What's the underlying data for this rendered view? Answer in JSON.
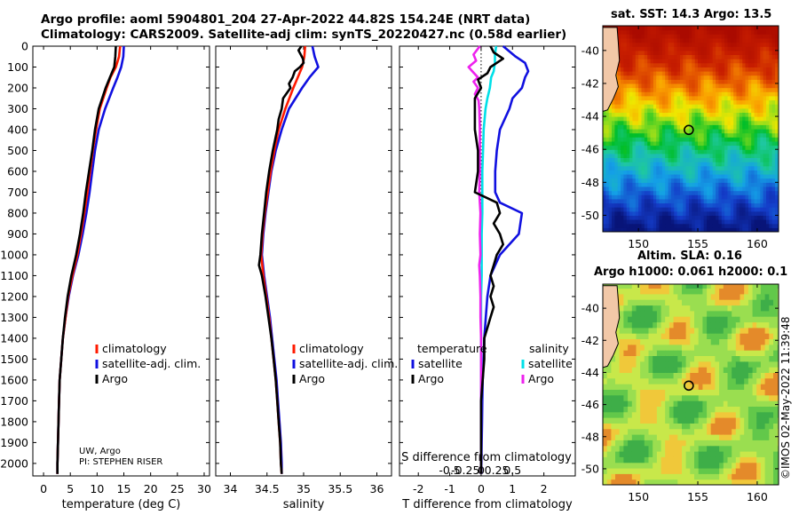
{
  "header": {
    "line1": "Argo profile: aoml 5904801_204 27-Apr-2022 44.82S 154.24E (NRT data)",
    "line2": "Climatology: CARS2009. Satellite-adj clim: synTS_20220427.nc (0.58d earlier)"
  },
  "credits": {
    "line1": "UW, Argo",
    "line2": "PI: STEPHEN RISER"
  },
  "imos_stamp": "©IMOS 02-May-2022 11:39:48",
  "colors": {
    "climatology": "#ff1a00",
    "satellite": "#1010e0",
    "argo": "#000000",
    "sal_sat": "#00e0e8",
    "sal_argo": "#ee22ee"
  },
  "right_panels": {
    "sst_title": "sat. SST: 14.3 Argo: 13.5",
    "sla_title1": "Altim. SLA: 0.16",
    "sla_title2": "Argo h1000: 0.061 h2000: 0.1",
    "float_marker": {
      "lon": 154.24,
      "lat": -44.82
    }
  },
  "chart_data": [
    {
      "type": "line",
      "xlabel": "temperature (deg C)",
      "xlim": [
        -2,
        31
      ],
      "xticks": [
        0,
        5,
        10,
        15,
        20,
        25,
        30
      ],
      "ylim": [
        2060,
        0
      ],
      "yticks": [
        0,
        100,
        200,
        300,
        400,
        500,
        600,
        700,
        800,
        900,
        1000,
        1100,
        1200,
        1300,
        1400,
        1500,
        1600,
        1700,
        1800,
        1900,
        2000
      ],
      "legend": [
        "climatology",
        "satellite-adj. clim.",
        "Argo"
      ],
      "series": [
        {
          "name": "climatology",
          "y": [
            0,
            50,
            100,
            150,
            200,
            300,
            400,
            500,
            600,
            700,
            800,
            900,
            1000,
            1100,
            1200,
            1300,
            1400,
            1500,
            1600,
            1700,
            1800,
            1900,
            2000,
            2050
          ],
          "x": [
            14.3,
            14.1,
            13.5,
            12.5,
            11.8,
            10.5,
            9.8,
            9.2,
            8.7,
            8.2,
            7.6,
            7,
            6.3,
            5.4,
            4.6,
            4.1,
            3.6,
            3.3,
            3,
            2.9,
            2.8,
            2.7,
            2.6,
            2.6
          ]
        },
        {
          "name": "satellite-adj. clim.",
          "y": [
            0,
            50,
            100,
            150,
            200,
            300,
            400,
            500,
            600,
            700,
            800,
            900,
            1000,
            1100,
            1200,
            1300,
            1400,
            1500,
            1600,
            1700,
            1800,
            1900,
            2000,
            2050
          ],
          "x": [
            15,
            14.9,
            14.5,
            13.8,
            13,
            11.5,
            10.3,
            9.6,
            9.1,
            8.6,
            8,
            7.3,
            6.5,
            5.5,
            4.7,
            4.1,
            3.6,
            3.3,
            3,
            2.9,
            2.8,
            2.7,
            2.6,
            2.6
          ]
        },
        {
          "name": "Argo",
          "y": [
            0,
            50,
            100,
            150,
            200,
            300,
            400,
            500,
            600,
            700,
            800,
            900,
            1000,
            1100,
            1200,
            1300,
            1400,
            1500,
            1600,
            1700,
            1800,
            1900,
            2000,
            2050
          ],
          "x": [
            13.5,
            13.4,
            13.2,
            12.4,
            11.6,
            10.3,
            9.6,
            9.1,
            8.5,
            7.9,
            7.4,
            6.8,
            6.1,
            5.2,
            4.5,
            4,
            3.6,
            3.3,
            3,
            2.9,
            2.8,
            2.7,
            2.6,
            2.6
          ]
        }
      ]
    },
    {
      "type": "line",
      "xlabel": "salinity",
      "xlim": [
        33.8,
        36.2
      ],
      "xticks": [
        34,
        34.5,
        35,
        35.5,
        36
      ],
      "ylim": [
        2060,
        0
      ],
      "legend": [
        "climatology",
        "satellite-adj. clim.",
        "Argo"
      ],
      "series": [
        {
          "name": "climatology",
          "y": [
            0,
            50,
            100,
            150,
            200,
            300,
            400,
            500,
            600,
            700,
            800,
            900,
            1000,
            1100,
            1200,
            1300,
            1400,
            1500,
            1600,
            1700,
            1800,
            1900,
            2000,
            2050
          ],
          "x": [
            35.02,
            35.01,
            34.98,
            34.92,
            34.86,
            34.75,
            34.66,
            34.6,
            34.55,
            34.51,
            34.47,
            34.44,
            34.42,
            34.45,
            34.49,
            34.53,
            34.56,
            34.59,
            34.62,
            34.64,
            34.66,
            34.68,
            34.69,
            34.7
          ]
        },
        {
          "name": "satellite-adj. clim.",
          "y": [
            0,
            50,
            100,
            150,
            200,
            300,
            400,
            500,
            600,
            700,
            800,
            900,
            1000,
            1100,
            1200,
            1300,
            1400,
            1500,
            1600,
            1700,
            1800,
            1900,
            2000,
            2050
          ],
          "x": [
            35.12,
            35.15,
            35.2,
            35.08,
            34.98,
            34.8,
            34.7,
            34.62,
            34.56,
            34.52,
            34.48,
            34.45,
            34.43,
            34.46,
            34.5,
            34.54,
            34.57,
            34.6,
            34.63,
            34.65,
            34.67,
            34.69,
            34.7,
            34.7
          ]
        },
        {
          "name": "Argo",
          "y": [
            0,
            20,
            40,
            60,
            80,
            100,
            120,
            150,
            180,
            200,
            250,
            300,
            350,
            400,
            500,
            600,
            700,
            800,
            900,
            1000,
            1050,
            1100,
            1200,
            1300,
            1400,
            1500,
            1600,
            1700,
            1800,
            1900,
            2000,
            2050
          ],
          "x": [
            34.97,
            34.93,
            34.96,
            34.99,
            35.0,
            34.95,
            34.88,
            34.85,
            34.8,
            34.82,
            34.72,
            34.7,
            34.66,
            34.64,
            34.58,
            34.53,
            34.49,
            34.46,
            34.43,
            34.41,
            34.39,
            34.43,
            34.48,
            34.52,
            34.56,
            34.59,
            34.62,
            34.64,
            34.66,
            34.68,
            34.69,
            34.7
          ]
        }
      ]
    },
    {
      "type": "line",
      "xlabel": "T difference from climatology",
      "xlabel2": "S difference from climatology",
      "xlim": [
        -2.6,
        3
      ],
      "xticks": [
        -2,
        -1,
        0,
        1,
        2
      ],
      "xticks2": [
        -0.5,
        -0.25,
        0,
        0.25,
        0.5
      ],
      "ylim": [
        2060,
        0
      ],
      "legend_left_title": "temperature",
      "legend_right_title": "salinity",
      "legend_left": [
        "satellite",
        "Argo"
      ],
      "legend_right": [
        "satellite",
        "Argo"
      ],
      "series": [
        {
          "name": "satellite",
          "group": "temperature",
          "y": [
            0,
            50,
            80,
            120,
            150,
            200,
            250,
            300,
            400,
            500,
            600,
            700,
            750,
            800,
            900,
            1000,
            1100,
            1200,
            1300,
            1400,
            1500,
            1600,
            1700,
            1800,
            1900,
            2000,
            2050
          ],
          "x": [
            0.7,
            1.1,
            1.4,
            1.5,
            1.4,
            1.3,
            1.0,
            0.9,
            0.6,
            0.5,
            0.45,
            0.45,
            0.6,
            1.3,
            1.2,
            0.6,
            0.3,
            0.2,
            0.15,
            0.1,
            0.08,
            0.05,
            0.04,
            0.03,
            0.02,
            0.01,
            0.0
          ]
        },
        {
          "name": "Argo",
          "group": "temperature",
          "y": [
            0,
            30,
            60,
            80,
            100,
            130,
            160,
            200,
            250,
            300,
            400,
            500,
            600,
            700,
            750,
            800,
            850,
            900,
            950,
            1000,
            1050,
            1100,
            1150,
            1200,
            1250,
            1300,
            1350,
            1400,
            1500,
            1600,
            1700,
            1800,
            1900,
            2000,
            2050
          ],
          "x": [
            0.3,
            0.4,
            0.7,
            0.5,
            0.3,
            0.2,
            -0.1,
            0.0,
            -0.2,
            -0.2,
            -0.2,
            -0.1,
            -0.1,
            -0.2,
            0.5,
            0.6,
            0.4,
            0.6,
            0.7,
            0.5,
            0.4,
            0.3,
            0.4,
            0.3,
            0.4,
            0.3,
            0.2,
            0.1,
            0.1,
            0.05,
            0.0,
            0.0,
            0.0,
            0.0,
            0.0
          ]
        },
        {
          "name": "satellite",
          "group": "salinity",
          "y": [
            0,
            40,
            80,
            120,
            150,
            200,
            250,
            300,
            400,
            500,
            600,
            700,
            800,
            900,
            1000,
            1100,
            1200,
            1300,
            1400,
            1500,
            1600,
            1700,
            1800,
            1900,
            2000,
            2050
          ],
          "x": [
            0.24,
            0.22,
            0.22,
            0.2,
            0.16,
            0.14,
            0.1,
            0.07,
            0.04,
            0.03,
            0.02,
            0.02,
            0.02,
            0.01,
            0.01,
            0.01,
            0.0,
            0.0,
            0.0,
            0.0,
            0.0,
            0.0,
            0.0,
            0.0,
            0.0,
            0.0
          ]
        },
        {
          "name": "Argo",
          "group": "salinity",
          "y": [
            0,
            40,
            70,
            100,
            120,
            150,
            170,
            200,
            230,
            260,
            300,
            400,
            500,
            600,
            700,
            800,
            900,
            1000,
            1050,
            1100,
            1200,
            1300,
            1400,
            1500,
            1600,
            1700,
            1800,
            1900,
            2000,
            2050
          ],
          "x": [
            -0.02,
            -0.12,
            -0.08,
            -0.2,
            -0.14,
            -0.05,
            -0.12,
            -0.05,
            -0.1,
            -0.04,
            -0.03,
            -0.02,
            -0.02,
            -0.02,
            -0.03,
            -0.01,
            -0.02,
            -0.01,
            -0.03,
            -0.02,
            -0.01,
            -0.01,
            0.0,
            0.0,
            0.0,
            0.0,
            0.0,
            0.0,
            0.0,
            0.0
          ]
        }
      ]
    },
    {
      "type": "heatmap",
      "title": "sat. SST: 14.3 Argo: 13.5",
      "xlim": [
        147,
        161.8
      ],
      "ylim": [
        -51,
        -38.5
      ],
      "xticks": [
        150,
        155,
        160
      ],
      "yticks": [
        -40,
        -42,
        -44,
        -46,
        -48,
        -50
      ]
    },
    {
      "type": "heatmap",
      "title": "Altim. SLA: 0.16",
      "xlim": [
        147,
        161.8
      ],
      "ylim": [
        -51,
        -38.5
      ],
      "xticks": [
        150,
        155,
        160
      ],
      "yticks": [
        -40,
        -42,
        -44,
        -46,
        -48,
        -50
      ]
    }
  ]
}
